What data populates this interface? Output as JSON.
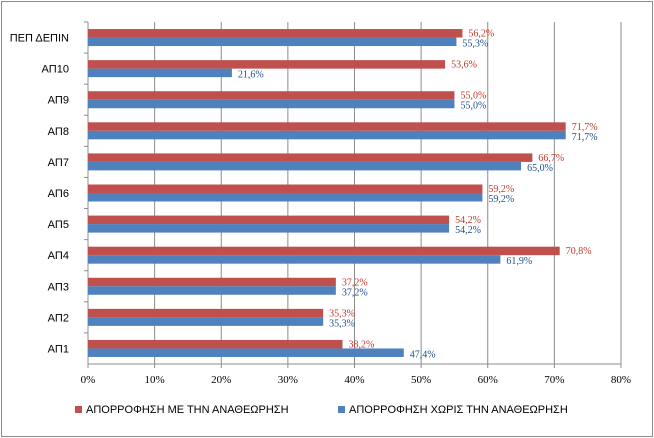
{
  "chart_data": {
    "type": "bar",
    "orientation": "horizontal",
    "categories": [
      "ΠΕΠ ΔΕΠΙΝ",
      "ΑΠ10",
      "ΑΠ9",
      "ΑΠ8",
      "ΑΠ7",
      "ΑΠ6",
      "ΑΠ5",
      "ΑΠ4",
      "ΑΠ3",
      "ΑΠ2",
      "ΑΠ1"
    ],
    "series": [
      {
        "name": "ΑΠΟΡΡΟΦΗΣΗ ΜΕ ΤΗΝ ΑΝΑΘΕΩΡΗΣΗ",
        "color": "#c0504d",
        "label_color": "#c0392b",
        "values": [
          56.2,
          53.6,
          55.0,
          71.7,
          66.7,
          59.2,
          54.2,
          70.8,
          37.2,
          35.3,
          38.2
        ],
        "labels": [
          "56,2%",
          "53,6%",
          "55,0%",
          "71,7%",
          "66,7%",
          "59,2%",
          "54,2%",
          "70,8%",
          "37,2%",
          "35,3%",
          "38,2%"
        ]
      },
      {
        "name": "ΑΠΟΡΡΟΦΗΣΗ ΧΩΡΙΣ ΤΗΝ ΑΝΑΘΕΩΡΗΣΗ",
        "color": "#4f81bd",
        "label_color": "#1f4e8c",
        "values": [
          55.3,
          21.6,
          55.0,
          71.7,
          65.0,
          59.2,
          54.2,
          61.9,
          37.2,
          35.3,
          47.4
        ],
        "labels": [
          "55,3%",
          "21,6%",
          "55,0%",
          "71,7%",
          "65,0%",
          "59,2%",
          "54,2%",
          "61,9%",
          "37,2%",
          "35,3%",
          "47,4%"
        ]
      }
    ],
    "xlim": [
      0,
      80
    ],
    "xticks": [
      0,
      10,
      20,
      30,
      40,
      50,
      60,
      70,
      80
    ],
    "xtick_labels": [
      "0%",
      "10%",
      "20%",
      "30%",
      "40%",
      "50%",
      "60%",
      "70%",
      "80%"
    ],
    "grid": "vertical",
    "legend": "bottom"
  }
}
